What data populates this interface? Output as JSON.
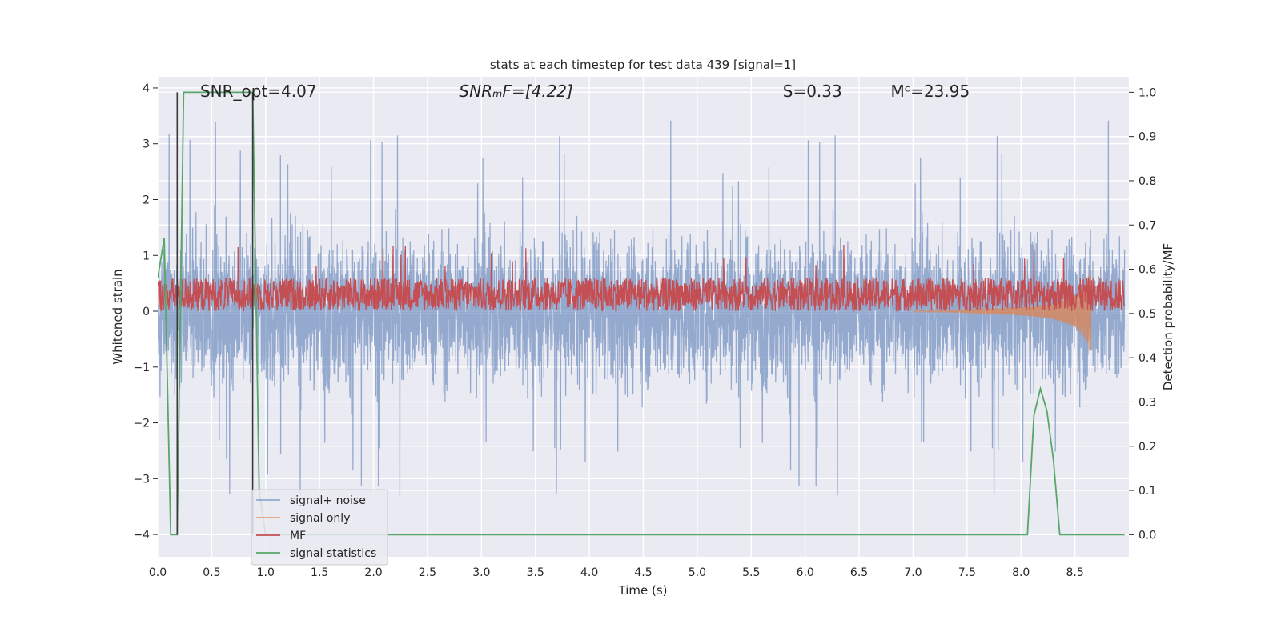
{
  "chart_data": {
    "type": "line",
    "title": "stats at each timestep for test data 439 [signal=1]",
    "xlabel": "Time (s)",
    "ylabel_left": "Whitened strain",
    "ylabel_right": "Detection probability/MF",
    "xlim": [
      0.0,
      9.0
    ],
    "ylim_left": [
      -4.4,
      4.2
    ],
    "ylim_right": [
      -0.05,
      1.035
    ],
    "xticks": [
      0.0,
      0.5,
      1.0,
      1.5,
      2.0,
      2.5,
      3.0,
      3.5,
      4.0,
      4.5,
      5.0,
      5.5,
      6.0,
      6.5,
      7.0,
      7.5,
      8.0,
      8.5
    ],
    "xtick_labels": [
      "0.0",
      "0.5",
      "1.0",
      "1.5",
      "2.0",
      "2.5",
      "3.0",
      "3.5",
      "4.0",
      "4.5",
      "5.0",
      "5.5",
      "6.0",
      "6.5",
      "7.0",
      "7.5",
      "8.0",
      "8.5"
    ],
    "yticks_left": [
      -4,
      -3,
      -2,
      -1,
      0,
      1,
      2,
      3,
      4
    ],
    "ytick_labels_left": [
      "−4",
      "−3",
      "−2",
      "−1",
      "0",
      "1",
      "2",
      "3",
      "4"
    ],
    "yticks_right": [
      0.0,
      0.1,
      0.2,
      0.3,
      0.4,
      0.5,
      0.6,
      0.7,
      0.8,
      0.9,
      1.0
    ],
    "ytick_labels_right": [
      "0.0",
      "0.1",
      "0.2",
      "0.3",
      "0.4",
      "0.5",
      "0.6",
      "0.7",
      "0.8",
      "0.9",
      "1.0"
    ],
    "grid": true,
    "legend_position": "lower-left",
    "annotations": [
      {
        "x": 0.2,
        "text": "SNR_opt=4.07",
        "italic": false
      },
      {
        "x": 2.6,
        "text": "SNRₘF=[4.22]",
        "italic": true
      },
      {
        "x": 5.6,
        "text": "S=0.33",
        "italic": false
      },
      {
        "x": 6.6,
        "text": "Mᶜ=23.95",
        "italic": false
      }
    ],
    "series": [
      {
        "name": "signal+ noise",
        "color": "#4c72b0",
        "axis": "left",
        "kind": "noise",
        "amplitude": 1.3,
        "spike_max": 3.75,
        "spike_min": -3.3
      },
      {
        "name": "signal only",
        "color": "#dd8452",
        "axis": "left",
        "kind": "chirp",
        "x": [
          7.0,
          7.4,
          7.8,
          8.1,
          8.3,
          8.5,
          8.6,
          8.65
        ],
        "envelope": [
          0.01,
          0.02,
          0.05,
          0.09,
          0.15,
          0.28,
          0.5,
          0.78
        ]
      },
      {
        "name": "MF",
        "color": "#c44e52",
        "axis": "left",
        "kind": "mf",
        "center": 0.3,
        "amplitude": 0.3
      },
      {
        "name": "signal statistics",
        "color": "#55a868",
        "axis": "right",
        "x": [
          0.0,
          0.06,
          0.12,
          0.18,
          0.24,
          0.26,
          0.84,
          0.88,
          0.94,
          1.0,
          8.06,
          8.12,
          8.18,
          8.24,
          8.3,
          8.36,
          8.42,
          8.96
        ],
        "y": [
          0.58,
          0.67,
          0.0,
          0.0,
          1.0,
          1.0,
          1.0,
          1.0,
          0.1,
          0.0,
          0.0,
          0.27,
          0.33,
          0.28,
          0.17,
          0.0,
          0.0,
          0.0
        ]
      },
      {
        "name": "",
        "color": "#3a3a3a",
        "axis": "right",
        "kind": "marker",
        "x": [
          0.18,
          0.18,
          0.18,
          0.88,
          0.88,
          0.88
        ],
        "y": [
          0.0,
          1.0,
          0.0,
          1.0,
          0.0,
          0.0
        ]
      }
    ]
  }
}
